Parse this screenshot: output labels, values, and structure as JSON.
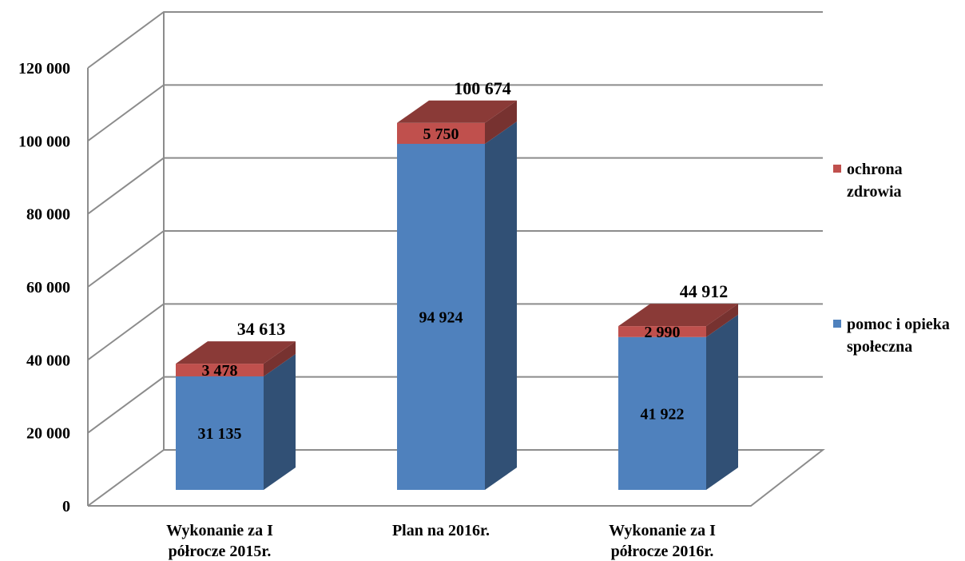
{
  "chart_data": {
    "type": "bar",
    "stacked": true,
    "three_d": true,
    "categories": [
      [
        "Wykonanie za I",
        "półrocze 2015r."
      ],
      [
        "Plan na 2016r."
      ],
      [
        "Wykonanie za I",
        "półrocze 2016r."
      ]
    ],
    "series": [
      {
        "name": [
          "pomoc i opieka",
          "społeczna"
        ],
        "values": [
          31135,
          94924,
          41922
        ],
        "labels": [
          "31 135",
          "94 924",
          "41 922"
        ],
        "color": "#4f81bd"
      },
      {
        "name": [
          "ochrona",
          "zdrowia"
        ],
        "values": [
          3478,
          5750,
          2990
        ],
        "labels": [
          "3 478",
          "5 750",
          "2 990"
        ],
        "color": "#c0504d"
      }
    ],
    "totals": [
      "34 613",
      "100 674",
      "44 912"
    ],
    "ylim": [
      0,
      120000
    ],
    "yticks": [
      "0",
      "20 000",
      "40 000",
      "60 000",
      "80 000",
      "100 000",
      "120 000"
    ],
    "grid": true,
    "legend_position": "right"
  }
}
